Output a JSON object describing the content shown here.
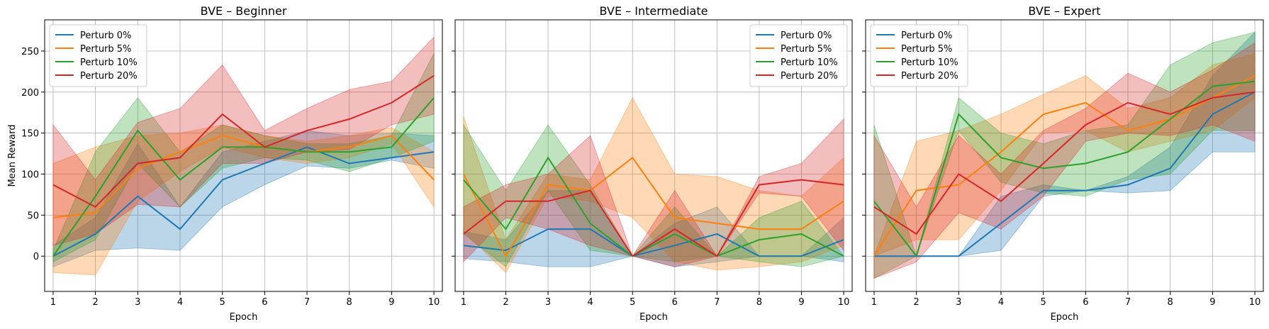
{
  "chart_data": [
    {
      "type": "line",
      "title": "BVE – Beginner",
      "xlabel": "Epoch",
      "ylabel": "Mean Reward",
      "x": [
        1,
        2,
        3,
        4,
        5,
        6,
        7,
        8,
        9,
        10
      ],
      "xlim": [
        0.8,
        10.2
      ],
      "ylim": [
        -43,
        288
      ],
      "yticks": [
        0,
        50,
        100,
        150,
        200,
        250
      ],
      "grid": true,
      "legend_position": "upper-left",
      "series": [
        {
          "name": "Perturb 0%",
          "color": "#1f77b4",
          "values": [
            0,
            27,
            73,
            33,
            93,
            113,
            133,
            113,
            120,
            127
          ],
          "upper": [
            13,
            47,
            137,
            60,
            127,
            140,
            153,
            147,
            150,
            147
          ],
          "lower": [
            -13,
            7,
            10,
            7,
            60,
            87,
            110,
            107,
            117,
            107
          ]
        },
        {
          "name": "Perturb 5%",
          "color": "#ff7f0e",
          "values": [
            47,
            53,
            107,
            127,
            147,
            133,
            127,
            133,
            147,
            93
          ],
          "upper": [
            113,
            133,
            147,
            150,
            160,
            147,
            140,
            147,
            157,
            127
          ],
          "lower": [
            -20,
            -23,
            67,
            103,
            133,
            120,
            113,
            120,
            137,
            60
          ]
        },
        {
          "name": "Perturb 10%",
          "color": "#2ca02c",
          "values": [
            0,
            73,
            153,
            93,
            133,
            133,
            127,
            127,
            133,
            193
          ],
          "upper": [
            7,
            127,
            193,
            127,
            160,
            147,
            137,
            137,
            147,
            247
          ],
          "lower": [
            -7,
            20,
            113,
            60,
            107,
            120,
            117,
            103,
            120,
            140
          ]
        },
        {
          "name": "Perturb 20%",
          "color": "#d62728",
          "values": [
            87,
            60,
            113,
            120,
            173,
            133,
            153,
            167,
            187,
            220
          ],
          "upper": [
            160,
            93,
            163,
            180,
            233,
            153,
            180,
            203,
            213,
            267
          ],
          "lower": [
            13,
            27,
            63,
            60,
            113,
            113,
            127,
            130,
            160,
            173
          ]
        }
      ]
    },
    {
      "type": "line",
      "title": "BVE – Intermediate",
      "xlabel": "Epoch",
      "ylabel": "",
      "x": [
        1,
        2,
        3,
        4,
        5,
        6,
        7,
        8,
        9,
        10
      ],
      "xlim": [
        0.8,
        10.2
      ],
      "ylim": [
        -43,
        288
      ],
      "yticks": [
        0,
        50,
        100,
        150,
        200,
        250
      ],
      "grid": true,
      "legend_position": "upper-right",
      "series": [
        {
          "name": "Perturb 0%",
          "color": "#1f77b4",
          "values": [
            13,
            7,
            33,
            33,
            0,
            13,
            27,
            0,
            0,
            20
          ],
          "upper": [
            30,
            20,
            80,
            80,
            0,
            40,
            60,
            0,
            0,
            47
          ],
          "lower": [
            -3,
            -7,
            -13,
            -13,
            0,
            -13,
            -7,
            0,
            0,
            -7
          ]
        },
        {
          "name": "Perturb 5%",
          "color": "#ff7f0e",
          "values": [
            100,
            0,
            87,
            80,
            120,
            47,
            40,
            33,
            33,
            67
          ],
          "upper": [
            170,
            20,
            100,
            93,
            193,
            100,
            97,
            80,
            73,
            120
          ],
          "lower": [
            30,
            -20,
            73,
            67,
            47,
            -7,
            -17,
            -13,
            -7,
            13
          ]
        },
        {
          "name": "Perturb 10%",
          "color": "#2ca02c",
          "values": [
            93,
            33,
            120,
            40,
            0,
            27,
            0,
            20,
            27,
            0
          ],
          "upper": [
            160,
            80,
            160,
            87,
            0,
            60,
            0,
            47,
            67,
            0
          ],
          "lower": [
            27,
            -13,
            80,
            7,
            0,
            -7,
            0,
            -7,
            -13,
            0
          ]
        },
        {
          "name": "Perturb 20%",
          "color": "#d62728",
          "values": [
            27,
            67,
            67,
            80,
            0,
            33,
            0,
            87,
            93,
            87
          ],
          "upper": [
            60,
            87,
            100,
            147,
            0,
            80,
            0,
            97,
            113,
            167
          ],
          "lower": [
            -7,
            47,
            33,
            13,
            0,
            -13,
            0,
            77,
            73,
            7
          ]
        }
      ]
    },
    {
      "type": "line",
      "title": "BVE – Expert",
      "xlabel": "Epoch",
      "ylabel": "",
      "x": [
        1,
        2,
        3,
        4,
        5,
        6,
        7,
        8,
        9,
        10
      ],
      "xlim": [
        0.8,
        10.2
      ],
      "ylim": [
        -43,
        288
      ],
      "yticks": [
        0,
        50,
        100,
        150,
        200,
        250
      ],
      "grid": true,
      "legend_position": "upper-left",
      "series": [
        {
          "name": "Perturb 0%",
          "color": "#1f77b4",
          "values": [
            0,
            0,
            0,
            40,
            80,
            80,
            87,
            107,
            173,
            200
          ],
          "upper": [
            0,
            0,
            0,
            73,
            87,
            80,
            97,
            133,
            220,
            273
          ],
          "lower": [
            0,
            0,
            0,
            7,
            73,
            80,
            77,
            80,
            127,
            127
          ]
        },
        {
          "name": "Perturb 5%",
          "color": "#ff7f0e",
          "values": [
            0,
            80,
            87,
            127,
            173,
            187,
            153,
            167,
            193,
            220
          ],
          "upper": [
            0,
            140,
            153,
            173,
            197,
            220,
            180,
            193,
            233,
            247
          ],
          "lower": [
            0,
            20,
            20,
            80,
            150,
            153,
            127,
            140,
            153,
            193
          ]
        },
        {
          "name": "Perturb 10%",
          "color": "#2ca02c",
          "values": [
            67,
            0,
            173,
            120,
            107,
            113,
            127,
            167,
            207,
            213
          ],
          "upper": [
            160,
            0,
            193,
            150,
            137,
            153,
            160,
            233,
            260,
            273
          ],
          "lower": [
            -27,
            0,
            153,
            90,
            77,
            73,
            93,
            100,
            153,
            153
          ]
        },
        {
          "name": "Perturb 20%",
          "color": "#d62728",
          "values": [
            60,
            27,
            100,
            67,
            113,
            160,
            187,
            173,
            193,
            200
          ],
          "upper": [
            147,
            60,
            147,
            100,
            153,
            180,
            223,
            200,
            227,
            260
          ],
          "lower": [
            -27,
            -7,
            53,
            33,
            73,
            140,
            150,
            147,
            160,
            140
          ]
        }
      ]
    }
  ]
}
